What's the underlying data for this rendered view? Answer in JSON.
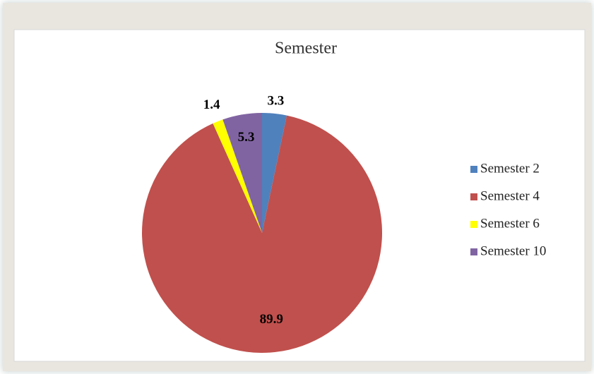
{
  "chart_data": {
    "type": "pie",
    "title": "Semester",
    "categories": [
      "Semester 2",
      "Semester 4",
      "Semester 6",
      "Semester 10"
    ],
    "values": [
      3.3,
      89.9,
      1.4,
      5.3
    ],
    "colors": [
      "#4f81bd",
      "#c0504d",
      "#ffff00",
      "#8064a2"
    ],
    "legend": "right"
  }
}
